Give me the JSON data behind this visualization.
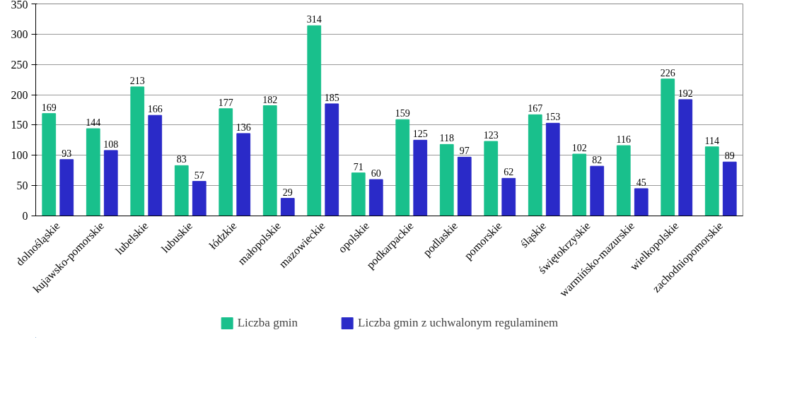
{
  "chart_data": {
    "type": "bar",
    "categories": [
      "dolnośląskie",
      "kujawsko-pomorskie",
      "lubelskie",
      "lubuskie",
      "łódzkie",
      "małopolskie",
      "mazowieckie",
      "opolskie",
      "podkarpackie",
      "podlaskie",
      "pomorskie",
      "śląskie",
      "świętokrzyskie",
      "warmińsko-mazurskie",
      "wielkopolskie",
      "zachodniopomorskie"
    ],
    "series": [
      {
        "name": "Liczba gmin",
        "color": "#19c08c",
        "values": [
          169,
          144,
          213,
          83,
          177,
          182,
          314,
          71,
          159,
          118,
          123,
          167,
          102,
          116,
          226,
          114
        ]
      },
      {
        "name": "Liczba gmin z uchwalonym regulaminem",
        "color": "#2a2ac8",
        "values": [
          93,
          108,
          166,
          57,
          136,
          29,
          185,
          60,
          125,
          97,
          62,
          153,
          82,
          45,
          192,
          89
        ]
      }
    ],
    "ylim": [
      0,
      350
    ],
    "yticks": [
      0,
      50,
      100,
      150,
      200,
      250,
      300,
      350
    ],
    "grid": "y",
    "legend": "bottom",
    "data_labels": true
  }
}
